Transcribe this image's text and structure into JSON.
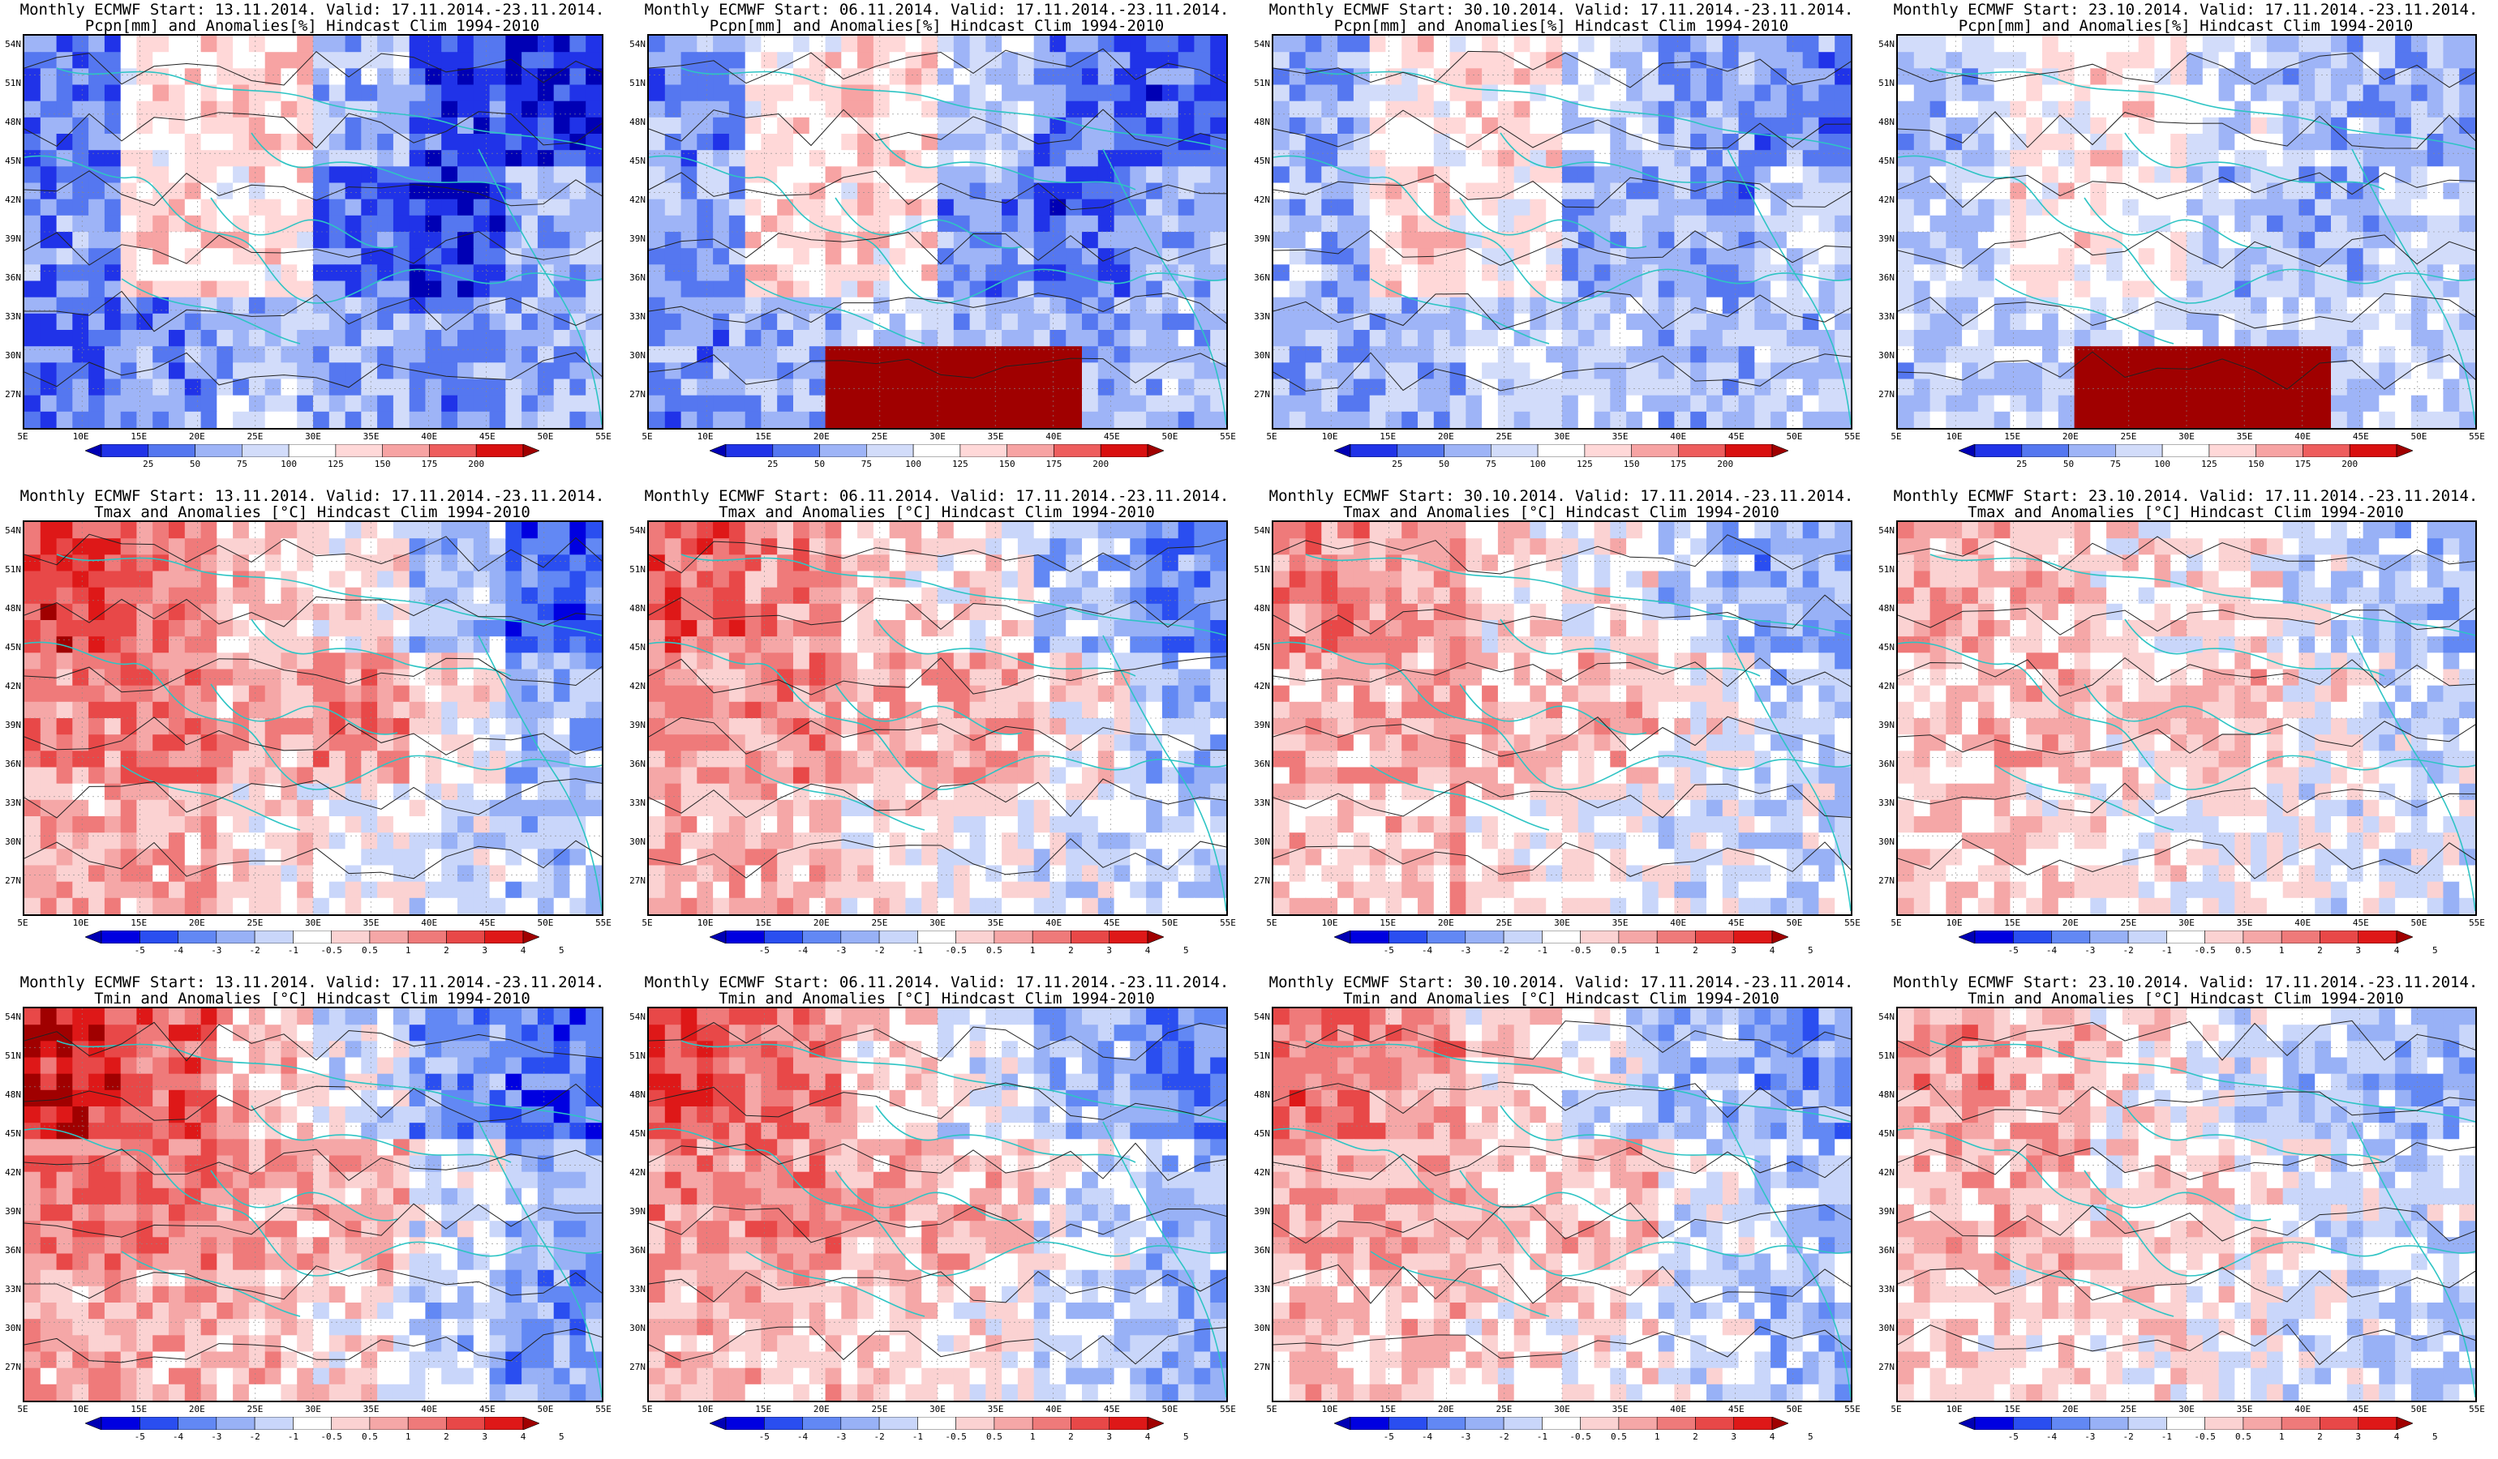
{
  "rows": [
    {
      "title_line3": "Pcpn[mm] and Anomalies[%] Hindcast Clim 1994-2010",
      "variable": "precip",
      "colorbar_labels": [
        "25",
        "50",
        "75",
        "100",
        "125",
        "150",
        "175",
        "200"
      ],
      "colorbar_colors": [
        "#0000b4",
        "#2033e8",
        "#5577f0",
        "#9eb4f7",
        "#d2dcfa",
        "#ffffff",
        "#ffd8d8",
        "#f7a3a3",
        "#ee5d5d",
        "#d91010",
        "#a00000"
      ]
    },
    {
      "title_line3": "Tmax and Anomalies [°C] Hindcast Clim 1994-2010",
      "variable": "tmax",
      "colorbar_labels": [
        "-5",
        "-4",
        "-3",
        "-2",
        "-1",
        "-0.5",
        "0.5",
        "1",
        "2",
        "3",
        "4",
        "5"
      ],
      "colorbar_colors": [
        "#0000b4",
        "#0000e0",
        "#2a4ef0",
        "#6288f4",
        "#98b1f6",
        "#c9d6fa",
        "#ffffff",
        "#fbd2d2",
        "#f5a7a7",
        "#ef7a7a",
        "#e84848",
        "#de1818",
        "#a00000"
      ]
    },
    {
      "title_line3": "Tmin and Anomalies [°C] Hindcast Clim 1994-2010",
      "variable": "tmin",
      "colorbar_labels": [
        "-5",
        "-4",
        "-3",
        "-2",
        "-1",
        "-0.5",
        "0.5",
        "1",
        "2",
        "3",
        "4",
        "5"
      ],
      "colorbar_colors": [
        "#0000b4",
        "#0000e0",
        "#2a4ef0",
        "#6288f4",
        "#98b1f6",
        "#c9d6fa",
        "#ffffff",
        "#fbd2d2",
        "#f5a7a7",
        "#ef7a7a",
        "#e84848",
        "#de1818",
        "#a00000"
      ]
    }
  ],
  "columns": [
    {
      "title_line1": "Monthly ECMWF Start: 13.11.2014. Valid: 17.11.2014.-23.11.2014."
    },
    {
      "title_line1": "Monthly ECMWF Start: 06.11.2014. Valid: 17.11.2014.-23.11.2014."
    },
    {
      "title_line1": "Monthly ECMWF Start: 30.10.2014. Valid: 17.11.2014.-23.11.2014."
    },
    {
      "title_line1": "Monthly ECMWF Start: 23.10.2014. Valid: 17.11.2014.-23.11.2014."
    }
  ],
  "latitude_labels": [
    "54N",
    "51N",
    "48N",
    "45N",
    "42N",
    "39N",
    "36N",
    "33N",
    "30N",
    "27N"
  ],
  "longitude_labels": [
    "5E",
    "10E",
    "15E",
    "20E",
    "25E",
    "30E",
    "35E",
    "40E",
    "45E",
    "50E",
    "55E"
  ],
  "map_extent": {
    "lon": [
      5,
      55
    ],
    "lat": [
      25,
      55
    ]
  },
  "anomaly_pattern": {
    "precip": [
      [
        -0.6,
        0.1,
        0.2,
        -0.3,
        -0.7,
        -0.8
      ],
      [
        -0.5,
        0.2,
        0.1,
        -0.6,
        -0.8,
        -0.4
      ],
      [
        -0.6,
        -0.5,
        -0.3,
        -0.4,
        -0.5,
        -0.4
      ]
    ],
    "tmax": [
      [
        0.7,
        0.5,
        0.2,
        0.1,
        -0.3,
        -0.6
      ],
      [
        0.4,
        0.5,
        0.3,
        0.4,
        0.1,
        -0.3
      ],
      [
        0.3,
        0.3,
        0.1,
        0.0,
        -0.1,
        -0.2
      ]
    ],
    "tmin": [
      [
        0.8,
        0.6,
        0.2,
        -0.1,
        -0.4,
        -0.6
      ],
      [
        0.5,
        0.5,
        0.3,
        0.3,
        -0.1,
        -0.3
      ],
      [
        0.3,
        0.3,
        0.2,
        0.1,
        -0.2,
        -0.4
      ]
    ]
  }
}
